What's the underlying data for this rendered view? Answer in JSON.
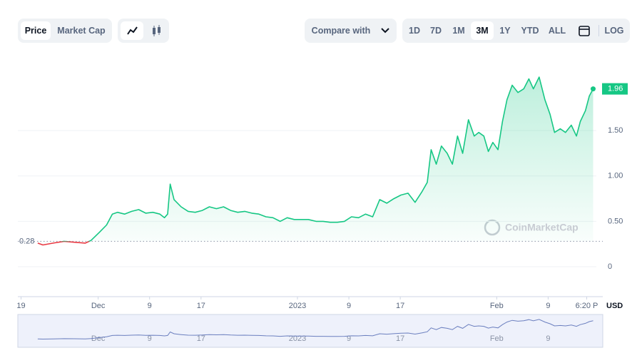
{
  "toolbar": {
    "chart_tabs": [
      "Price",
      "Market Cap"
    ],
    "compare": "Compare with",
    "ranges": [
      "1D",
      "7D",
      "1M",
      "3M",
      "1Y",
      "YTD",
      "ALL"
    ],
    "scale": "LOG"
  },
  "chart_data": {
    "type": "line",
    "series": [
      {
        "color": "#16c784",
        "below_color": "#ea3943",
        "x": [
          2.6,
          3.4,
          5.0,
          6.7,
          8.3,
          10.0,
          10.9,
          12.2,
          13.3,
          14.2,
          15.0,
          16.1,
          17.2,
          18.3,
          19.4,
          20.5,
          21.6,
          22.3,
          22.8,
          23.2,
          23.8,
          24.9,
          26.0,
          27.1,
          28.2,
          29.3,
          30.4,
          31.5,
          32.6,
          33.7,
          34.8,
          35.9,
          37.0,
          38.1,
          39.2,
          40.3,
          41.4,
          42.5,
          43.6,
          44.7,
          45.9,
          47.0,
          48.1,
          49.2,
          50.3,
          51.4,
          52.5,
          53.6,
          54.7,
          55.8,
          56.9,
          58.0,
          59.1,
          60.2,
          61.3,
          62.4,
          63.2,
          63.8,
          64.6,
          65.4,
          66.3,
          67.1,
          67.9,
          68.7,
          69.6,
          70.5,
          71.2,
          72.0,
          72.7,
          73.4,
          74.2,
          74.9,
          75.6,
          76.4,
          77.3,
          78.2,
          79.0,
          79.7,
          80.6,
          81.5,
          82.3,
          83.0,
          83.9,
          84.7,
          85.6,
          86.4,
          87.0,
          87.8,
          88.4,
          89.0
        ],
        "values": [
          0.26,
          0.24,
          0.26,
          0.28,
          0.27,
          0.26,
          0.29,
          0.38,
          0.46,
          0.58,
          0.6,
          0.58,
          0.61,
          0.63,
          0.59,
          0.6,
          0.58,
          0.54,
          0.58,
          0.91,
          0.74,
          0.66,
          0.61,
          0.6,
          0.62,
          0.66,
          0.64,
          0.66,
          0.62,
          0.6,
          0.61,
          0.59,
          0.58,
          0.55,
          0.54,
          0.5,
          0.54,
          0.52,
          0.52,
          0.52,
          0.5,
          0.5,
          0.49,
          0.49,
          0.5,
          0.55,
          0.54,
          0.58,
          0.55,
          0.74,
          0.7,
          0.75,
          0.79,
          0.81,
          0.71,
          0.83,
          0.93,
          1.29,
          1.13,
          1.33,
          1.25,
          1.13,
          1.44,
          1.25,
          1.62,
          1.44,
          1.48,
          1.44,
          1.27,
          1.37,
          1.29,
          1.6,
          1.84,
          2.0,
          1.92,
          1.96,
          2.07,
          1.96,
          2.09,
          1.84,
          1.68,
          1.48,
          1.52,
          1.48,
          1.56,
          1.44,
          1.6,
          1.72,
          1.88,
          1.96
        ]
      }
    ],
    "reference": 0.28,
    "xlim": [
      -0.5,
      89.5
    ],
    "xticks": [
      {
        "value": 0,
        "label": "19"
      },
      {
        "value": 12,
        "label": "Dec"
      },
      {
        "value": 20,
        "label": "9"
      },
      {
        "value": 28,
        "label": "17"
      },
      {
        "value": 43,
        "label": "2023"
      },
      {
        "value": 51,
        "label": "9"
      },
      {
        "value": 59,
        "label": "17"
      },
      {
        "value": 74,
        "label": "Feb"
      },
      {
        "value": 82,
        "label": "9"
      },
      {
        "value": 88,
        "label": "6:20 P"
      }
    ],
    "ylim": [
      -0.33,
      2.35
    ],
    "yticks": [
      0,
      {
        "value": 0.5,
        "label": "0.50"
      },
      {
        "value": 1,
        "label": "1.00"
      },
      {
        "value": 1.5,
        "label": "1.50"
      }
    ],
    "currency": "USD",
    "watermark": "CoinMarketCap",
    "grid": true
  }
}
